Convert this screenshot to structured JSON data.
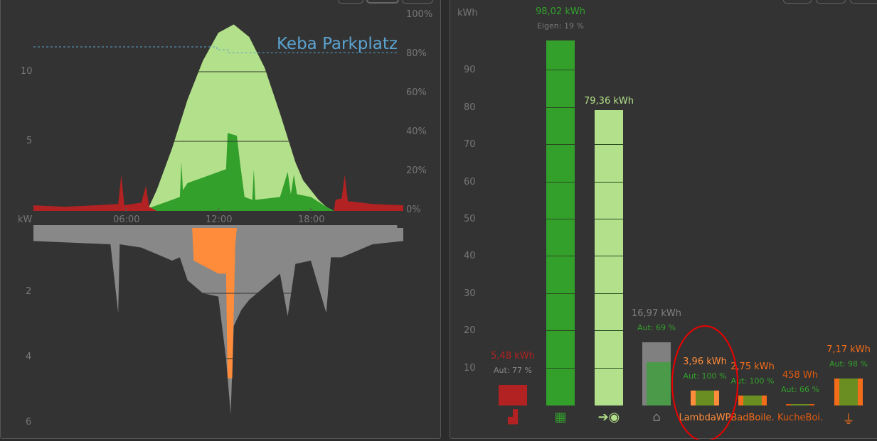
{
  "left_chart": {
    "top_y_unit_ticks": [
      "10",
      "5"
    ],
    "pct_ticks": [
      "100%",
      "80%",
      "60%",
      "40%",
      "20%",
      "0%"
    ],
    "x_ticks": [
      "06:00",
      "12:00",
      "18:00"
    ],
    "unit": "kW",
    "bottom_y_ticks": [
      "2",
      "4",
      "6"
    ],
    "annotation": "Keba Parkplatz",
    "colors": {
      "pv": "#b3e08a",
      "self": "#33a02c",
      "grid": "#b22222",
      "consumption": "#888888",
      "wallbox": "#ff8c3a",
      "keba": "#5ba3d0"
    }
  },
  "chart_data": {
    "type": "area",
    "x_unit": "hours",
    "series": [
      {
        "name": "PV",
        "values": [
          [
            7,
            0
          ],
          [
            7.5,
            0.3
          ],
          [
            8,
            1.5
          ],
          [
            9,
            4.5
          ],
          [
            10,
            8
          ],
          [
            11,
            10.8
          ],
          [
            12,
            12.8
          ],
          [
            13,
            13.4
          ],
          [
            14,
            12.5
          ],
          [
            15,
            10.3
          ],
          [
            16,
            7
          ],
          [
            17,
            3.5
          ],
          [
            17.5,
            2.2
          ],
          [
            18,
            1.5
          ],
          [
            18.5,
            0.8
          ],
          [
            19,
            0.3
          ],
          [
            19.5,
            0
          ]
        ]
      },
      {
        "name": "Eigenverbrauch",
        "values": [
          [
            7,
            0
          ],
          [
            8,
            0.4
          ],
          [
            9,
            0.8
          ],
          [
            9.5,
            1
          ],
          [
            9.6,
            3.5
          ],
          [
            9.7,
            1.5
          ],
          [
            10,
            2
          ],
          [
            11,
            2.4
          ],
          [
            12,
            2.8
          ],
          [
            12.5,
            3
          ],
          [
            12.6,
            5.6
          ],
          [
            13.2,
            5.4
          ],
          [
            13.4,
            3.5
          ],
          [
            13.7,
            1
          ],
          [
            14.2,
            0.8
          ],
          [
            14.3,
            3
          ],
          [
            14.4,
            0.8
          ],
          [
            16,
            1
          ],
          [
            16.5,
            2.8
          ],
          [
            16.7,
            1.2
          ],
          [
            16.9,
            2.6
          ],
          [
            17.1,
            1.2
          ],
          [
            18,
            1
          ],
          [
            19,
            0.3
          ],
          [
            19.5,
            0
          ]
        ]
      },
      {
        "name": "Netzbezug",
        "values": [
          [
            0,
            0.4
          ],
          [
            2,
            0.3
          ],
          [
            4,
            0.4
          ],
          [
            5.5,
            0.5
          ],
          [
            5.7,
            2.6
          ],
          [
            5.9,
            0.4
          ],
          [
            7,
            0.6
          ],
          [
            7.3,
            1.8
          ],
          [
            7.5,
            0.3
          ],
          [
            8,
            0
          ],
          [
            19.5,
            0
          ],
          [
            19.6,
            0.8
          ],
          [
            20,
            0.9
          ],
          [
            20.2,
            2.6
          ],
          [
            20.4,
            0.7
          ],
          [
            22,
            0.5
          ],
          [
            24,
            0.4
          ]
        ]
      },
      {
        "name": "Verbrauch",
        "values": [
          [
            0,
            0.4
          ],
          [
            5,
            0.5
          ],
          [
            5.5,
            2.6
          ],
          [
            5.6,
            0.5
          ],
          [
            7,
            0.6
          ],
          [
            8,
            0.8
          ],
          [
            9,
            1
          ],
          [
            9.5,
            0.9
          ],
          [
            10,
            1.6
          ],
          [
            11,
            2
          ],
          [
            12,
            2.1
          ],
          [
            12.5,
            4
          ],
          [
            12.8,
            5.7
          ],
          [
            13,
            3
          ],
          [
            13.5,
            2.5
          ],
          [
            14,
            2.2
          ],
          [
            15,
            1.8
          ],
          [
            16,
            1.4
          ],
          [
            16.5,
            2.7
          ],
          [
            17,
            1.1
          ],
          [
            18,
            1
          ],
          [
            19,
            2.6
          ],
          [
            19.3,
            0.9
          ],
          [
            20,
            0.9
          ],
          [
            22,
            0.5
          ],
          [
            24,
            0.4
          ]
        ]
      },
      {
        "name": "Wallbox",
        "values": [
          [
            10.3,
            0
          ],
          [
            10.4,
            1
          ],
          [
            12,
            1.4
          ],
          [
            12.5,
            1.4
          ],
          [
            12.6,
            4.6
          ],
          [
            12.9,
            4.6
          ],
          [
            13.1,
            0.5
          ],
          [
            13.2,
            0
          ]
        ]
      },
      {
        "name": "Keba Parkplatz %",
        "values": [
          [
            0,
            84
          ],
          [
            11.8,
            84
          ],
          [
            11.9,
            82.5
          ],
          [
            12.5,
            82.5
          ],
          [
            12.6,
            81
          ],
          [
            23.6,
            81
          ]
        ]
      }
    ],
    "ylim_top": [
      0,
      14
    ],
    "ylim_bottom": [
      0,
      6.2
    ],
    "xlim": [
      0,
      23.6
    ]
  },
  "right_chart": {
    "unit": "kWh",
    "y_ticks": [
      "90",
      "80",
      "70",
      "60",
      "50",
      "40",
      "30",
      "20",
      "10"
    ],
    "bars": [
      {
        "value": "5,48 kWh",
        "sub": "Aut: 77 %",
        "kwh": 5.48,
        "color": "#b22222",
        "label_color": "#b22222",
        "sub_color": "#888",
        "icon": "factory-icon"
      },
      {
        "value": "98,02 kWh",
        "sub": "Eigen: 19 %",
        "kwh": 98.02,
        "color": "#33a02c",
        "label_color": "#33a02c",
        "sub_color": "#777",
        "icon": "solar-panel-icon"
      },
      {
        "value": "79,36 kWh",
        "sub": "",
        "kwh": 79.36,
        "color": "#b3e08a",
        "label_color": "#b3e08a",
        "sub_color": "#777",
        "icon": "grid-export-icon"
      },
      {
        "value": "16,97 kWh",
        "sub": "Aut: 69 %",
        "kwh": 16.97,
        "color": "#808080",
        "label_color": "#808080",
        "sub_color": "#33a02c",
        "icon": "home-icon",
        "name": ""
      },
      {
        "value": "3,96 kWh",
        "sub": "Aut: 100 %",
        "kwh": 3.96,
        "color": "#ff8c3a",
        "label_color": "#ff8c3a",
        "sub_color": "#33a02c",
        "name": "LambdaWP"
      },
      {
        "value": "2,75 kWh",
        "sub": "Aut: 100 %",
        "kwh": 2.75,
        "color": "#f26c1a",
        "label_color": "#f26c1a",
        "sub_color": "#33a02c",
        "name": "BadBoile."
      },
      {
        "value": "458 Wh",
        "sub": "Aut: 66 %",
        "kwh": 0.458,
        "color": "#e05a10",
        "label_color": "#e05a10",
        "sub_color": "#33a02c",
        "name": "KucheBoi."
      },
      {
        "value": "7,17 kWh",
        "sub": "Aut: 98 %",
        "kwh": 7.17,
        "color": "#f26c1a",
        "label_color": "#f26c1a",
        "sub_color": "#33a02c",
        "icon": "plug-icon"
      }
    ]
  }
}
